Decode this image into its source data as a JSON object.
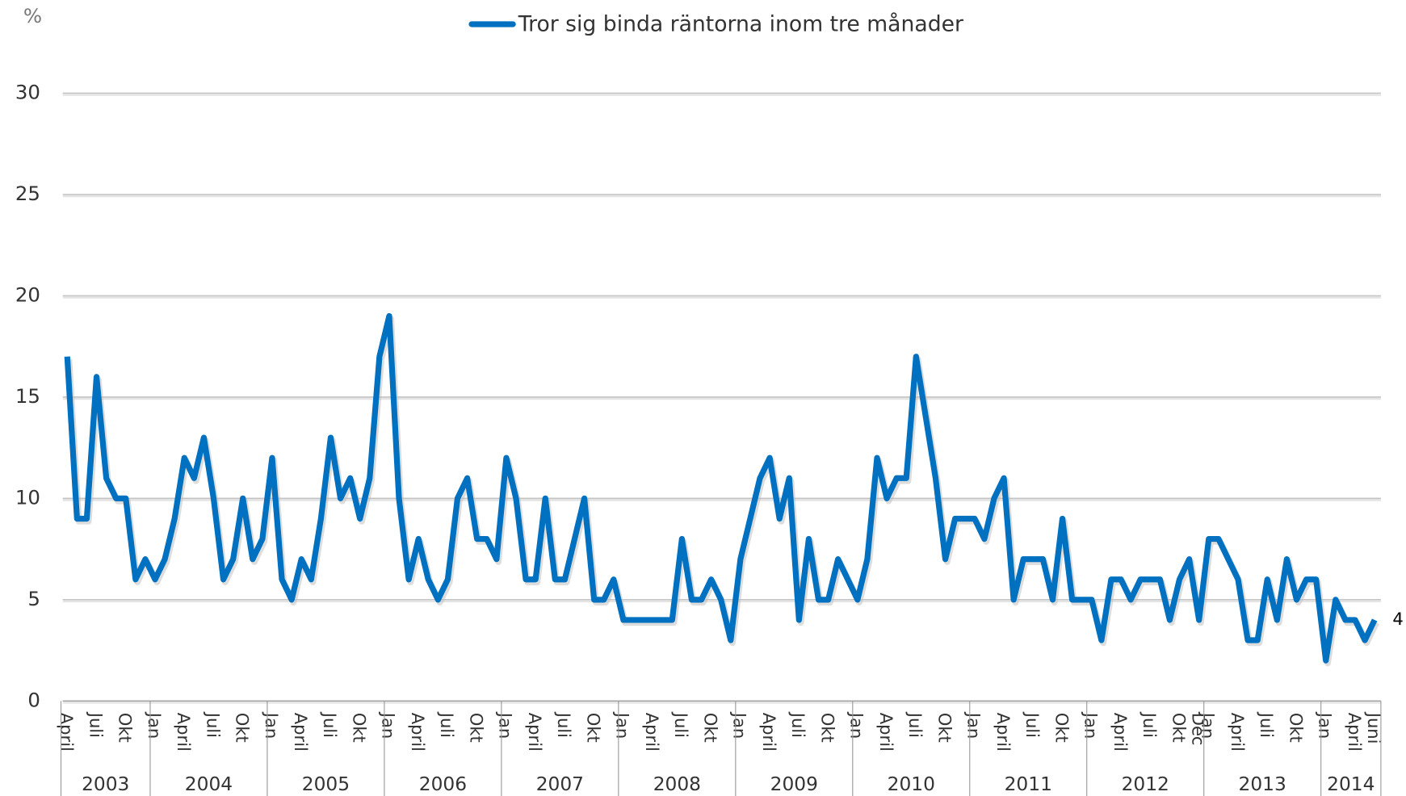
{
  "chart_data": {
    "type": "line",
    "unit_label": "%",
    "categories": [
      "April",
      null,
      null,
      "Juli",
      null,
      null,
      "Okt",
      null,
      null,
      "Jan",
      null,
      null,
      "April",
      null,
      null,
      "Juli",
      null,
      null,
      "Okt",
      null,
      null,
      "Jan",
      null,
      null,
      "April",
      null,
      null,
      "Juli",
      null,
      null,
      "Okt",
      null,
      null,
      "Jan",
      null,
      null,
      "April",
      null,
      null,
      "Juli",
      null,
      null,
      "Okt",
      null,
      null,
      "Jan",
      null,
      null,
      "April",
      null,
      null,
      "Juli",
      null,
      null,
      "Okt",
      null,
      null,
      "Jan",
      null,
      null,
      "April",
      null,
      null,
      "Juli",
      null,
      null,
      "Okt",
      null,
      null,
      "Jan",
      null,
      null,
      "April",
      null,
      null,
      "Juli",
      null,
      null,
      "Okt",
      null,
      null,
      "Jan",
      null,
      null,
      "April",
      null,
      null,
      "Juli",
      null,
      null,
      "Okt",
      null,
      null,
      "Jan",
      null,
      null,
      "April",
      null,
      null,
      "Juli",
      null,
      null,
      "Okt",
      null,
      null,
      "Jan",
      null,
      null,
      "April",
      null,
      null,
      "Juli",
      null,
      null,
      "Okt",
      null,
      "Dec",
      "Jan",
      null,
      null,
      "April",
      null,
      null,
      "Juli",
      null,
      null,
      "Okt",
      null,
      null,
      "Jan",
      null,
      null,
      "April",
      null,
      "Juni"
    ],
    "years": [
      "2003",
      "2004",
      "2005",
      "2006",
      "2007",
      "2008",
      "2009",
      "2010",
      "2011",
      "2012",
      "2013",
      "2014"
    ],
    "series": [
      {
        "name": "Tror sig binda räntorna inom tre månader",
        "color": "#0070c0",
        "values": [
          17,
          9,
          9,
          16,
          11,
          10,
          10,
          6,
          7,
          6,
          7,
          9,
          12,
          11,
          13,
          10,
          6,
          7,
          10,
          7,
          8,
          12,
          6,
          5,
          7,
          6,
          9,
          13,
          10,
          11,
          9,
          11,
          17,
          19,
          10,
          6,
          8,
          6,
          5,
          6,
          10,
          11,
          8,
          8,
          7,
          12,
          10,
          6,
          6,
          10,
          6,
          6,
          8,
          10,
          5,
          5,
          6,
          4,
          4,
          4,
          4,
          4,
          4,
          8,
          5,
          5,
          6,
          5,
          3,
          7,
          9,
          11,
          12,
          9,
          11,
          4,
          8,
          5,
          5,
          7,
          6,
          5,
          7,
          12,
          10,
          11,
          11,
          17,
          14,
          11,
          7,
          9,
          9,
          9,
          8,
          10,
          11,
          5,
          7,
          7,
          7,
          5,
          9,
          5,
          5,
          5,
          3,
          6,
          6,
          5,
          6,
          6,
          6,
          4,
          6,
          7,
          4,
          8,
          8,
          7,
          6,
          3,
          3,
          6,
          4,
          7,
          5,
          6,
          6,
          2,
          5,
          4,
          4,
          3,
          4
        ],
        "value_labels": [
          null,
          null,
          null,
          null,
          null,
          null,
          null,
          null,
          null,
          null,
          null,
          null,
          null,
          null,
          null,
          null,
          null,
          null,
          null,
          null,
          null,
          null,
          null,
          null,
          null,
          null,
          null,
          null,
          null,
          null,
          null,
          null,
          null,
          null,
          null,
          null,
          null,
          null,
          null,
          null,
          null,
          null,
          null,
          null,
          null,
          null,
          null,
          null,
          null,
          null,
          null,
          null,
          null,
          null,
          null,
          null,
          null,
          null,
          null,
          null,
          null,
          null,
          null,
          null,
          null,
          null,
          null,
          null,
          null,
          null,
          null,
          null,
          null,
          null,
          null,
          null,
          null,
          null,
          null,
          null,
          null,
          null,
          null,
          null,
          null,
          null,
          null,
          null,
          null,
          null,
          null,
          null,
          null,
          null,
          null,
          null,
          null,
          null,
          null,
          null,
          null,
          null,
          null,
          null,
          null,
          null,
          null,
          null,
          null,
          null,
          null,
          null,
          null,
          null,
          null,
          null,
          null,
          null,
          null,
          null,
          null,
          null,
          null,
          null,
          null,
          null,
          null,
          null,
          null,
          null,
          null,
          null,
          null,
          null,
          "4"
        ]
      }
    ],
    "ylim": [
      0,
      30
    ],
    "yticks": [
      0,
      5,
      10,
      15,
      20,
      25,
      30
    ],
    "grid": true,
    "legend": "top"
  }
}
